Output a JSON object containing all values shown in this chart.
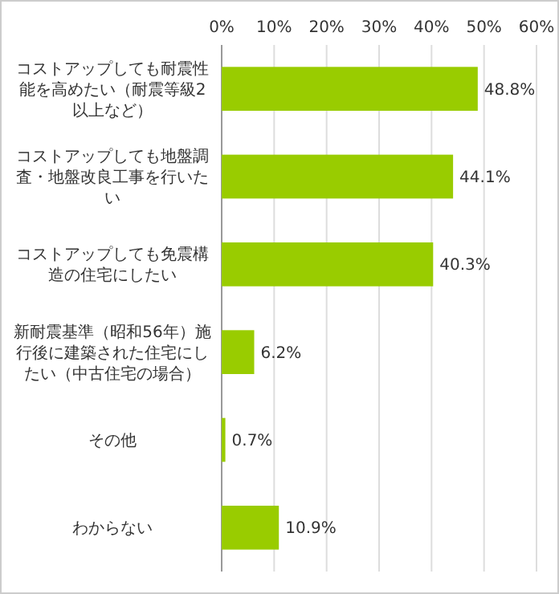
{
  "chart_data": {
    "type": "bar",
    "orientation": "horizontal",
    "categories": [
      "コストアップしても耐震性能を高めたい（耐震等級2以上など）",
      "コストアップしても地盤調査・地盤改良工事を行いたい",
      "コストアップしても免震構造の住宅にしたい",
      "新耐震基準（昭和56年）施行後に建築された住宅にしたい（中古住宅の場合）",
      "その他",
      "わからない"
    ],
    "values": [
      48.8,
      44.1,
      40.3,
      6.2,
      0.7,
      10.9
    ],
    "value_labels": [
      "48.8%",
      "44.1%",
      "40.3%",
      "6.2%",
      "0.7%",
      "10.9%"
    ],
    "color": "#99cc00",
    "xlim": [
      0,
      60
    ],
    "xticks": [
      {
        "value": 0,
        "label": "0%"
      },
      {
        "value": 10,
        "label": "10%"
      },
      {
        "value": 20,
        "label": "20%"
      },
      {
        "value": 30,
        "label": "30%"
      },
      {
        "value": 40,
        "label": "40%"
      },
      {
        "value": 50,
        "label": "50%"
      },
      {
        "value": 60,
        "label": "60%"
      }
    ],
    "grid": "x"
  }
}
